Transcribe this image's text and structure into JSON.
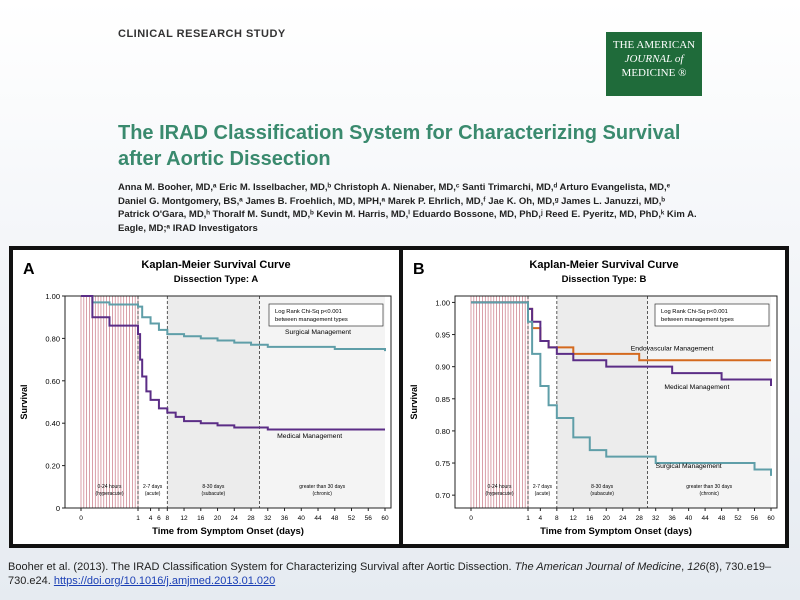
{
  "header_label": "CLINICAL RESEARCH STUDY",
  "journal_logo": {
    "line1": "THE AMERICAN",
    "line2": "JOURNAL of",
    "line3": "MEDICINE ®",
    "color": "#1f6b3a"
  },
  "title": "The IRAD Classification System for Characterizing Survival after Aortic Dissection",
  "authors": "Anna M. Booher, MD,ᵃ Eric M. Isselbacher, MD,ᵇ Christoph A. Nienaber, MD,ᶜ Santi Trimarchi, MD,ᵈ Arturo Evangelista, MD,ᵉ Daniel G. Montgomery, BS,ᵃ James B. Froehlich, MD, MPH,ᵃ Marek P. Ehrlich, MD,ᶠ Jae K. Oh, MD,ᵍ James L. Januzzi, MD,ᵇ Patrick O'Gara, MD,ʰ Thoralf M. Sundt, MD,ᵇ Kevin M. Harris, MD,ⁱ Eduardo Bossone, MD, PhD,ʲ Reed E. Pyeritz, MD, PhD,ᵏ Kim A. Eagle, MD;ᵃ IRAD Investigators",
  "citation": {
    "text": "Booher et al. (2013). The IRAD Classification System for Characterizing Survival after Aortic Dissection. ",
    "journal": "The American Journal of Medicine",
    "volume": "126",
    "issue": "(8), 730.e19–730.e24. ",
    "doi": "https://doi.org/10.1016/j.amjmed.2013.01.020"
  },
  "chart_data": [
    {
      "type": "line",
      "panel_label": "A",
      "title": "Kaplan-Meier Survival Curve",
      "subtitle": "Dissection Type:  A",
      "xlabel": "Time from Symptom Onset (days)",
      "ylabel": "Survival",
      "ylim": [
        0,
        1.0
      ],
      "yticks": [
        "0",
        "0.20",
        "0.40",
        "0.60",
        "0.80",
        "1.00"
      ],
      "xticks": [
        "0",
        "1",
        "4",
        "6",
        "8",
        "12",
        "16",
        "20",
        "24",
        "28",
        "32",
        "36",
        "40",
        "44",
        "48",
        "52",
        "56",
        "60"
      ],
      "annotation": "Log Rank Chi-Sq p<0.001\nbetween management types",
      "phases": [
        "0-24 hours\n(hyperacute)",
        "2-7 days\n(acute)",
        "8-30 days\n(subacute)",
        "greater than 30 days\n(chronic)"
      ],
      "series": [
        {
          "name": "Surgical Management",
          "color": "#5f9ea8",
          "x": [
            0,
            0.2,
            0.5,
            1,
            2,
            4,
            6,
            8,
            12,
            16,
            20,
            24,
            28,
            32,
            36,
            40,
            44,
            48,
            52,
            56,
            60
          ],
          "y": [
            1.0,
            0.97,
            0.96,
            0.95,
            0.9,
            0.87,
            0.84,
            0.82,
            0.81,
            0.8,
            0.79,
            0.78,
            0.77,
            0.76,
            0.76,
            0.76,
            0.76,
            0.75,
            0.75,
            0.75,
            0.74
          ]
        },
        {
          "name": "Medical Management",
          "color": "#5b2d86",
          "x": [
            0,
            0.2,
            0.5,
            1,
            1.5,
            2,
            3,
            4,
            6,
            8,
            10,
            12,
            16,
            20,
            24,
            28,
            32,
            36,
            40,
            44,
            48,
            52,
            56,
            60
          ],
          "y": [
            1.0,
            0.9,
            0.86,
            0.82,
            0.7,
            0.62,
            0.55,
            0.51,
            0.47,
            0.45,
            0.43,
            0.41,
            0.4,
            0.39,
            0.38,
            0.38,
            0.37,
            0.37,
            0.37,
            0.37,
            0.37,
            0.37,
            0.37,
            0.37
          ]
        }
      ]
    },
    {
      "type": "line",
      "panel_label": "B",
      "title": "Kaplan-Meier Survival Curve",
      "subtitle": "Dissection Type:  B",
      "xlabel": "Time from Symptom Onset (days)",
      "ylabel": "Survival",
      "ylim": [
        0.68,
        1.01
      ],
      "yticks": [
        "0.70",
        "0.75",
        "0.80",
        "0.85",
        "0.90",
        "0.95",
        "1.00"
      ],
      "xticks": [
        "0",
        "1",
        "4",
        "8",
        "12",
        "16",
        "20",
        "24",
        "28",
        "32",
        "36",
        "40",
        "44",
        "48",
        "52",
        "56",
        "60"
      ],
      "annotation": "Log Rank Chi-Sq p<0.001\nbetween management types",
      "phases": [
        "0-24 hours\n(hyperacute)",
        "2-7 days\n(acute)",
        "8-30 days\n(subacute)",
        "greater than 30 days\n(chronic)"
      ],
      "series": [
        {
          "name": "Endovascular Management",
          "color": "#d4691e",
          "x": [
            0,
            1,
            2,
            4,
            6,
            8,
            12,
            16,
            20,
            24,
            28,
            32,
            36,
            40,
            44,
            48,
            52,
            56,
            60
          ],
          "y": [
            1.0,
            0.99,
            0.96,
            0.94,
            0.93,
            0.93,
            0.92,
            0.92,
            0.92,
            0.92,
            0.91,
            0.91,
            0.91,
            0.91,
            0.91,
            0.91,
            0.91,
            0.91,
            0.91
          ]
        },
        {
          "name": "Medical Management",
          "color": "#5b2d86",
          "x": [
            0,
            1,
            2,
            4,
            6,
            8,
            12,
            16,
            20,
            24,
            28,
            32,
            36,
            40,
            44,
            48,
            52,
            56,
            60
          ],
          "y": [
            1.0,
            0.99,
            0.97,
            0.94,
            0.93,
            0.92,
            0.91,
            0.91,
            0.9,
            0.9,
            0.9,
            0.9,
            0.89,
            0.89,
            0.89,
            0.88,
            0.88,
            0.88,
            0.87
          ]
        },
        {
          "name": "Surgical Management",
          "color": "#5f9ea8",
          "x": [
            0,
            1,
            2,
            4,
            6,
            8,
            12,
            16,
            20,
            24,
            28,
            32,
            36,
            40,
            44,
            48,
            52,
            56,
            60
          ],
          "y": [
            1.0,
            0.97,
            0.92,
            0.87,
            0.84,
            0.82,
            0.79,
            0.77,
            0.76,
            0.76,
            0.76,
            0.75,
            0.75,
            0.75,
            0.75,
            0.75,
            0.75,
            0.74,
            0.73
          ]
        }
      ]
    }
  ]
}
